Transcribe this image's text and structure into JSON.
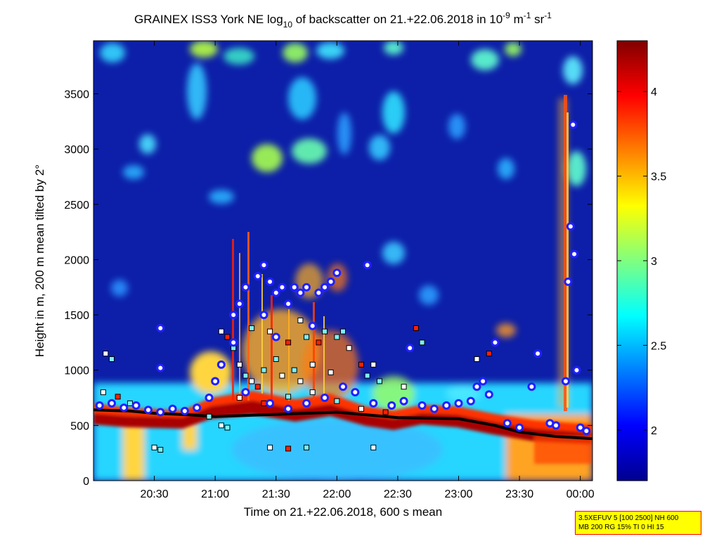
{
  "chart_data": {
    "type": "heatmap",
    "title": {
      "prefix": "GRAINEX ISS3 York NE log",
      "sub": "10",
      "middle": " of backscatter on 21.+22.06.2018 in 10",
      "unit_exp1": "-9",
      "unit_m": " m",
      "unit_exp2": "-1",
      "unit_sr": " sr",
      "unit_exp3": "-1"
    },
    "xlabel": "Time on 21.+22.06.2018, 600 s mean",
    "ylabel": "Height in m, 200 m mean tilted by 2°",
    "x_tick_labels": [
      "20:30",
      "21:00",
      "21:30",
      "22:00",
      "22:30",
      "23:00",
      "23:30",
      "00:00"
    ],
    "x_ticks_hours": [
      20.5,
      21.0,
      21.5,
      22.0,
      22.5,
      23.0,
      23.5,
      24.0
    ],
    "xlim_hours": [
      20.0,
      24.1
    ],
    "y_tick_labels": [
      "0",
      "500",
      "1000",
      "1500",
      "2000",
      "2500",
      "3000",
      "3500"
    ],
    "y_ticks": [
      0,
      500,
      1000,
      1500,
      2000,
      2500,
      3000,
      3500
    ],
    "ylim": [
      0,
      3980
    ],
    "colorbar": {
      "tick_labels": [
        "2",
        "2.5",
        "3",
        "3.5",
        "4"
      ],
      "ticks": [
        2,
        2.5,
        3,
        3.5,
        4
      ],
      "range": [
        1.7,
        4.3
      ],
      "colormap": "jet"
    },
    "mixing_layer_line": [
      {
        "t": 20.0,
        "h": 640
      },
      {
        "t": 20.3,
        "h": 630
      },
      {
        "t": 20.5,
        "h": 610
      },
      {
        "t": 20.8,
        "h": 595
      },
      {
        "t": 21.0,
        "h": 580
      },
      {
        "t": 21.5,
        "h": 600
      },
      {
        "t": 22.0,
        "h": 620
      },
      {
        "t": 22.5,
        "h": 570
      },
      {
        "t": 23.0,
        "h": 560
      },
      {
        "t": 23.3,
        "h": 500
      },
      {
        "t": 23.5,
        "h": 440
      },
      {
        "t": 23.8,
        "h": 400
      },
      {
        "t": 24.1,
        "h": 380
      }
    ],
    "layer_markers": [
      {
        "t": 20.05,
        "h": 680
      },
      {
        "t": 20.15,
        "h": 700
      },
      {
        "t": 20.25,
        "h": 660
      },
      {
        "t": 20.35,
        "h": 680
      },
      {
        "t": 20.45,
        "h": 640
      },
      {
        "t": 20.55,
        "h": 620
      },
      {
        "t": 20.65,
        "h": 650
      },
      {
        "t": 20.75,
        "h": 630
      },
      {
        "t": 20.85,
        "h": 660
      },
      {
        "t": 20.95,
        "h": 750
      },
      {
        "t": 21.0,
        "h": 900
      },
      {
        "t": 21.05,
        "h": 1050
      },
      {
        "t": 21.15,
        "h": 1250
      },
      {
        "t": 21.2,
        "h": 1600
      },
      {
        "t": 21.25,
        "h": 1750
      },
      {
        "t": 21.35,
        "h": 1850
      },
      {
        "t": 21.4,
        "h": 1950
      },
      {
        "t": 21.45,
        "h": 1800
      },
      {
        "t": 21.5,
        "h": 1700
      },
      {
        "t": 21.55,
        "h": 1750
      },
      {
        "t": 21.6,
        "h": 1600
      },
      {
        "t": 21.65,
        "h": 1750
      },
      {
        "t": 21.75,
        "h": 1750
      },
      {
        "t": 21.85,
        "h": 1700
      },
      {
        "t": 21.9,
        "h": 1750
      },
      {
        "t": 21.95,
        "h": 1800
      },
      {
        "t": 22.0,
        "h": 1880
      },
      {
        "t": 21.8,
        "h": 1400
      },
      {
        "t": 21.4,
        "h": 1500
      },
      {
        "t": 21.5,
        "h": 1300
      },
      {
        "t": 21.25,
        "h": 800
      },
      {
        "t": 21.45,
        "h": 700
      },
      {
        "t": 21.6,
        "h": 650
      },
      {
        "t": 21.75,
        "h": 700
      },
      {
        "t": 21.9,
        "h": 750
      },
      {
        "t": 22.05,
        "h": 850
      },
      {
        "t": 22.15,
        "h": 800
      },
      {
        "t": 22.25,
        "h": 1950
      },
      {
        "t": 22.3,
        "h": 700
      },
      {
        "t": 22.45,
        "h": 680
      },
      {
        "t": 22.55,
        "h": 720
      },
      {
        "t": 22.6,
        "h": 1200
      },
      {
        "t": 22.7,
        "h": 680
      },
      {
        "t": 22.8,
        "h": 650
      },
      {
        "t": 22.9,
        "h": 680
      },
      {
        "t": 23.0,
        "h": 700
      },
      {
        "t": 23.1,
        "h": 720
      },
      {
        "t": 23.15,
        "h": 850
      },
      {
        "t": 23.2,
        "h": 900
      },
      {
        "t": 23.25,
        "h": 780
      },
      {
        "t": 23.3,
        "h": 1250
      },
      {
        "t": 23.4,
        "h": 520
      },
      {
        "t": 23.5,
        "h": 480
      },
      {
        "t": 23.6,
        "h": 850
      },
      {
        "t": 23.65,
        "h": 1150
      },
      {
        "t": 23.75,
        "h": 520
      },
      {
        "t": 23.8,
        "h": 500
      },
      {
        "t": 23.88,
        "h": 900
      },
      {
        "t": 23.9,
        "h": 1800
      },
      {
        "t": 23.92,
        "h": 2300
      },
      {
        "t": 23.94,
        "h": 3220
      },
      {
        "t": 23.95,
        "h": 2050
      },
      {
        "t": 23.97,
        "h": 1000
      },
      {
        "t": 24.0,
        "h": 480
      },
      {
        "t": 24.05,
        "h": 450
      },
      {
        "t": 20.55,
        "h": 1380
      },
      {
        "t": 20.55,
        "h": 1020
      },
      {
        "t": 21.15,
        "h": 1500
      },
      {
        "t": 21.7,
        "h": 1700
      }
    ],
    "cloud_squares": [
      {
        "t": 20.1,
        "h": 1150
      },
      {
        "t": 20.15,
        "h": 1100
      },
      {
        "t": 20.08,
        "h": 800
      },
      {
        "t": 20.2,
        "h": 760
      },
      {
        "t": 20.3,
        "h": 700
      },
      {
        "t": 20.5,
        "h": 300
      },
      {
        "t": 20.55,
        "h": 280
      },
      {
        "t": 21.05,
        "h": 1350
      },
      {
        "t": 21.1,
        "h": 1300
      },
      {
        "t": 21.15,
        "h": 1200
      },
      {
        "t": 21.2,
        "h": 1050
      },
      {
        "t": 21.25,
        "h": 950
      },
      {
        "t": 21.3,
        "h": 900
      },
      {
        "t": 21.35,
        "h": 850
      },
      {
        "t": 21.4,
        "h": 1000
      },
      {
        "t": 21.45,
        "h": 1350
      },
      {
        "t": 21.5,
        "h": 1100
      },
      {
        "t": 21.55,
        "h": 950
      },
      {
        "t": 21.6,
        "h": 1250
      },
      {
        "t": 21.65,
        "h": 1000
      },
      {
        "t": 21.7,
        "h": 900
      },
      {
        "t": 21.75,
        "h": 1300
      },
      {
        "t": 21.8,
        "h": 1050
      },
      {
        "t": 21.85,
        "h": 1250
      },
      {
        "t": 21.9,
        "h": 1350
      },
      {
        "t": 21.95,
        "h": 980
      },
      {
        "t": 22.05,
        "h": 1350
      },
      {
        "t": 22.1,
        "h": 1200
      },
      {
        "t": 22.2,
        "h": 1050
      },
      {
        "t": 22.25,
        "h": 950
      },
      {
        "t": 22.3,
        "h": 1050
      },
      {
        "t": 22.35,
        "h": 900
      },
      {
        "t": 22.55,
        "h": 850
      },
      {
        "t": 22.65,
        "h": 1380
      },
      {
        "t": 22.7,
        "h": 1250
      },
      {
        "t": 21.05,
        "h": 500
      },
      {
        "t": 21.1,
        "h": 480
      },
      {
        "t": 21.45,
        "h": 300
      },
      {
        "t": 21.6,
        "h": 290
      },
      {
        "t": 21.75,
        "h": 300
      },
      {
        "t": 22.3,
        "h": 300
      },
      {
        "t": 20.95,
        "h": 580
      },
      {
        "t": 21.2,
        "h": 750
      },
      {
        "t": 21.4,
        "h": 700
      },
      {
        "t": 21.6,
        "h": 760
      },
      {
        "t": 21.8,
        "h": 800
      },
      {
        "t": 22.0,
        "h": 720
      },
      {
        "t": 22.2,
        "h": 650
      },
      {
        "t": 22.4,
        "h": 620
      },
      {
        "t": 21.3,
        "h": 1380
      },
      {
        "t": 21.7,
        "h": 1450
      },
      {
        "t": 22.0,
        "h": 1300
      },
      {
        "t": 23.15,
        "h": 1100
      },
      {
        "t": 23.25,
        "h": 1150
      }
    ],
    "annotation_lines": [
      "3.5XEFUV 5 [100 2500] NH 600",
      "MB 200 RG 15% TI 0 HI 15"
    ]
  }
}
